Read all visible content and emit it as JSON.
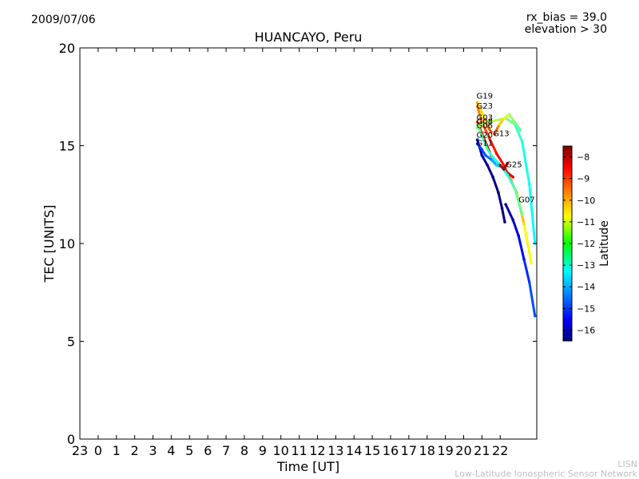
{
  "header": {
    "date": "2009/07/06",
    "rx_bias": "rx_bias = 39.0",
    "elevation": "elevation > 30"
  },
  "watermark": {
    "line1": "LISN",
    "line2": "Low-Latitude Ionospheric Sensor Network"
  },
  "chart_data": {
    "type": "scatter",
    "title": "HUANCAYO, Peru",
    "xlabel": "Time [UT]",
    "ylabel": "TEC [UNITS]",
    "xlim": [
      -1,
      24
    ],
    "ylim": [
      0,
      20
    ],
    "xtick_values": [
      -1,
      0,
      1,
      2,
      3,
      4,
      5,
      6,
      7,
      8,
      9,
      10,
      11,
      12,
      13,
      14,
      15,
      16,
      17,
      18,
      19,
      20,
      21,
      22
    ],
    "xtick_labels": [
      "23",
      "0",
      "1",
      "2",
      "3",
      "4",
      "5",
      "6",
      "7",
      "8",
      "9",
      "10",
      "11",
      "12",
      "13",
      "14",
      "15",
      "16",
      "17",
      "18",
      "19",
      "20",
      "21",
      "22"
    ],
    "yticks": [
      0,
      5,
      10,
      15,
      20
    ],
    "grid": false,
    "colorbar": {
      "label": "Latitude",
      "range": [
        -16.5,
        -7.5
      ],
      "ticks": [
        -8,
        -9,
        -10,
        -11,
        -12,
        -13,
        -14,
        -15,
        -16
      ],
      "tick_labels": [
        "−8",
        "−9",
        "−10",
        "−11",
        "−12",
        "−13",
        "−14",
        "−15",
        "−16"
      ]
    },
    "series": [
      {
        "name": "G19",
        "label_at": [
          20.7,
          17.4
        ],
        "x": [
          20.75,
          20.9,
          21.1,
          21.3,
          21.5
        ],
        "y": [
          17.2,
          16.9,
          16.5,
          16.0,
          15.7
        ],
        "lat": [
          -10.2,
          -10.4,
          -10.8,
          -9.5,
          -9.2
        ]
      },
      {
        "name": "G23",
        "label_at": [
          20.7,
          16.9
        ],
        "x": [
          20.75,
          21.0,
          21.4,
          21.8,
          22.2,
          22.6,
          22.9,
          23.3,
          23.7
        ],
        "y": [
          17.0,
          16.2,
          15.4,
          14.6,
          14.0,
          13.2,
          12.6,
          11.0,
          9.0
        ],
        "lat": [
          -10.0,
          -9.6,
          -9.0,
          -8.6,
          -8.8,
          -9.4,
          -10.0,
          -10.6,
          -11.0
        ]
      },
      {
        "name": "G03",
        "label_at": [
          20.7,
          16.3
        ],
        "x": [
          20.75,
          21.1,
          21.5,
          21.9,
          22.3,
          22.7
        ],
        "y": [
          16.2,
          15.4,
          14.5,
          14.1,
          13.7,
          13.4
        ],
        "lat": [
          -9.0,
          -8.4,
          -8.0,
          -8.0,
          -8.2,
          -8.6
        ]
      },
      {
        "name": "G08",
        "label_at": [
          20.7,
          16.1
        ],
        "x": [
          20.75,
          21.0,
          21.3,
          21.6,
          22.0,
          22.4,
          22.8,
          23.2
        ],
        "y": [
          16.1,
          15.5,
          14.8,
          14.4,
          14.0,
          13.5,
          12.8,
          11.5
        ],
        "lat": [
          -12.0,
          -12.4,
          -12.6,
          -12.8,
          -13.0,
          -12.8,
          -12.4,
          -12.0
        ]
      },
      {
        "name": "G06",
        "label_at": [
          20.7,
          15.9
        ],
        "x": [
          20.75,
          21.2,
          21.8,
          22.3,
          22.8,
          23.2,
          23.6,
          23.9
        ],
        "y": [
          15.9,
          16.2,
          16.3,
          16.4,
          16.1,
          15.2,
          13.0,
          10.0
        ],
        "lat": [
          -12.0,
          -11.6,
          -11.4,
          -11.8,
          -12.4,
          -12.8,
          -13.0,
          -13.2
        ]
      },
      {
        "name": "G20",
        "label_at": [
          20.7,
          15.4
        ],
        "x": [
          20.75,
          21.0,
          21.3,
          21.6,
          21.9,
          22.1,
          22.25
        ],
        "y": [
          15.3,
          14.5,
          14.0,
          13.4,
          12.6,
          11.8,
          11.1
        ],
        "lat": [
          -16.0,
          -16.2,
          -16.3,
          -16.4,
          -16.5,
          -16.5,
          -16.4
        ]
      },
      {
        "name": "G11",
        "label_at": [
          20.7,
          15.0
        ],
        "x": [
          20.75,
          21.0,
          21.2,
          21.5,
          21.8,
          22.1
        ],
        "y": [
          15.1,
          14.8,
          14.5,
          14.3,
          14.0,
          13.9
        ],
        "lat": [
          -15.0,
          -14.8,
          -14.6,
          -14.2,
          -13.6,
          -13.4
        ]
      },
      {
        "name": "G13",
        "label_at": [
          21.6,
          15.5
        ],
        "x": [
          21.7,
          21.9,
          22.2,
          22.5,
          22.8,
          23.1
        ],
        "y": [
          15.6,
          16.0,
          16.4,
          16.6,
          16.2,
          15.8
        ],
        "lat": [
          -9.0,
          -10.0,
          -10.8,
          -11.6,
          -12.0,
          -12.4
        ]
      },
      {
        "name": "G25",
        "label_at": [
          22.3,
          13.9
        ],
        "x": [
          22.0,
          22.2,
          22.4
        ],
        "y": [
          14.0,
          13.8,
          14.1
        ],
        "lat": [
          -8.0,
          -7.8,
          -8.0
        ]
      },
      {
        "name": "G07",
        "label_at": [
          23.0,
          12.1
        ],
        "x": [
          22.3,
          22.7,
          23.0,
          23.3,
          23.6,
          23.9
        ],
        "y": [
          12.0,
          11.2,
          10.4,
          9.2,
          8.0,
          6.3
        ],
        "lat": [
          -16.2,
          -16.0,
          -15.6,
          -15.2,
          -14.8,
          -14.6
        ]
      }
    ]
  }
}
